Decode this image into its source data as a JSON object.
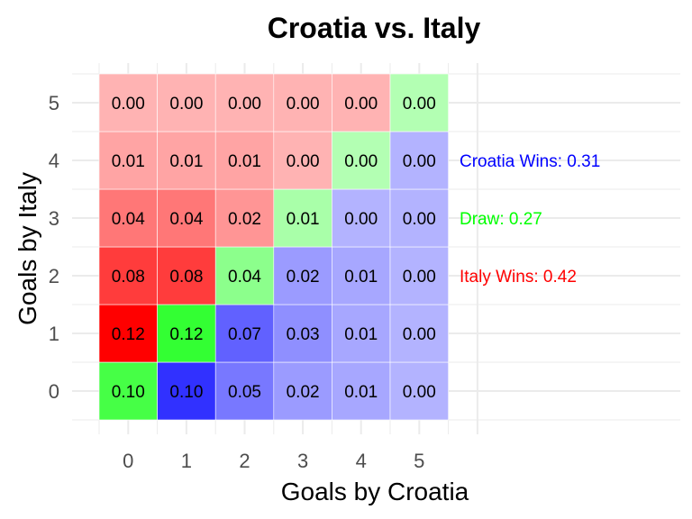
{
  "chart_data": {
    "type": "heatmap",
    "title": "Croatia vs. Italy",
    "xlabel": "Goals by Croatia",
    "ylabel": "Goals by Italy",
    "x_categories": [
      "0",
      "1",
      "2",
      "3",
      "4",
      "5"
    ],
    "y_categories": [
      "0",
      "1",
      "2",
      "3",
      "4",
      "5"
    ],
    "grid": true,
    "values": [
      [
        0.1,
        0.1,
        0.05,
        0.02,
        0.01,
        0.0
      ],
      [
        0.12,
        0.12,
        0.07,
        0.03,
        0.01,
        0.0
      ],
      [
        0.08,
        0.08,
        0.04,
        0.02,
        0.01,
        0.0
      ],
      [
        0.04,
        0.04,
        0.02,
        0.01,
        0.0,
        0.0
      ],
      [
        0.01,
        0.01,
        0.01,
        0.0,
        0.0,
        0.0
      ],
      [
        0.0,
        0.0,
        0.0,
        0.0,
        0.0,
        0.0
      ]
    ],
    "colors": {
      "croatia_win": "#0000ff",
      "draw": "#00ff00",
      "italy_win": "#ff0000",
      "grid": "#ebebeb",
      "cell_border": "#ffffff"
    },
    "annotations": [
      {
        "text": "Croatia Wins: 0.31",
        "color": "#0000ff",
        "y": 4
      },
      {
        "text": "Draw: 0.27",
        "color": "#00ff00",
        "y": 3
      },
      {
        "text": "Italy Wins: 0.42",
        "color": "#ff0000",
        "y": 2
      }
    ]
  }
}
